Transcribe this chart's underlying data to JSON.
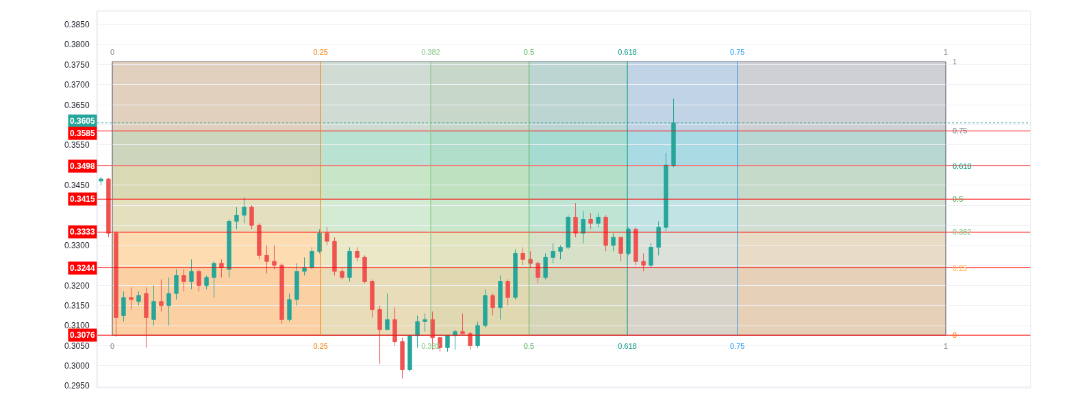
{
  "chart_data": {
    "type": "candlestick",
    "x": [
      -0.0136,
      -0.0046,
      0.0045,
      0.0135,
      0.0226,
      0.0316,
      0.0406,
      0.0497,
      0.0587,
      0.0678,
      0.0768,
      0.0858,
      0.0949,
      0.1039,
      0.113,
      0.122,
      0.131,
      0.1401,
      0.1491,
      0.1582,
      0.1672,
      0.1762,
      0.1853,
      0.1943,
      0.2034,
      0.2124,
      0.2214,
      0.2305,
      0.2395,
      0.2486,
      0.2576,
      0.2666,
      0.2757,
      0.2847,
      0.2938,
      0.3028,
      0.3118,
      0.3209,
      0.3299,
      0.339,
      0.348,
      0.357,
      0.3661,
      0.3751,
      0.3842,
      0.3932,
      0.4022,
      0.4113,
      0.4203,
      0.4294,
      0.4384,
      0.4474,
      0.4565,
      0.4655,
      0.4746,
      0.4836,
      0.4926,
      0.5017,
      0.5107,
      0.5198,
      0.5288,
      0.5378,
      0.5469,
      0.5559,
      0.565,
      0.574,
      0.583,
      0.5921,
      0.6011,
      0.6102,
      0.6192,
      0.6282,
      0.6373,
      0.6463,
      0.6554,
      0.6644,
      0.6734
    ],
    "ohlc": [
      [
        0.346,
        0.347,
        0.345,
        0.3465
      ],
      [
        0.3465,
        0.3468,
        0.332,
        0.333
      ],
      [
        0.333,
        0.3335,
        0.3072,
        0.312
      ],
      [
        0.3125,
        0.3185,
        0.311,
        0.317
      ],
      [
        0.317,
        0.3195,
        0.314,
        0.3165
      ],
      [
        0.316,
        0.3185,
        0.315,
        0.3175
      ],
      [
        0.318,
        0.3195,
        0.3045,
        0.312
      ],
      [
        0.3115,
        0.32,
        0.31,
        0.316
      ],
      [
        0.316,
        0.3215,
        0.3135,
        0.315
      ],
      [
        0.315,
        0.322,
        0.31,
        0.318
      ],
      [
        0.318,
        0.324,
        0.3165,
        0.3225
      ],
      [
        0.3225,
        0.324,
        0.3185,
        0.321
      ],
      [
        0.321,
        0.3265,
        0.319,
        0.3235
      ],
      [
        0.3235,
        0.324,
        0.3185,
        0.32
      ],
      [
        0.32,
        0.3225,
        0.319,
        0.322
      ],
      [
        0.322,
        0.326,
        0.317,
        0.3255
      ],
      [
        0.3255,
        0.3265,
        0.322,
        0.3245
      ],
      [
        0.324,
        0.3365,
        0.322,
        0.336
      ],
      [
        0.336,
        0.3395,
        0.334,
        0.3375
      ],
      [
        0.3375,
        0.342,
        0.3355,
        0.3395
      ],
      [
        0.3395,
        0.34,
        0.334,
        0.335
      ],
      [
        0.335,
        0.3355,
        0.3265,
        0.3275
      ],
      [
        0.3275,
        0.33,
        0.323,
        0.326
      ],
      [
        0.326,
        0.33,
        0.324,
        0.325
      ],
      [
        0.325,
        0.3255,
        0.3105,
        0.3115
      ],
      [
        0.3115,
        0.318,
        0.311,
        0.3165
      ],
      [
        0.3165,
        0.3255,
        0.315,
        0.3235
      ],
      [
        0.3235,
        0.327,
        0.3225,
        0.3245
      ],
      [
        0.3245,
        0.3295,
        0.324,
        0.3285
      ],
      [
        0.3285,
        0.334,
        0.328,
        0.333
      ],
      [
        0.333,
        0.3345,
        0.33,
        0.331
      ],
      [
        0.331,
        0.332,
        0.3225,
        0.3235
      ],
      [
        0.3235,
        0.3245,
        0.3215,
        0.322
      ],
      [
        0.322,
        0.3295,
        0.321,
        0.3285
      ],
      [
        0.3285,
        0.3295,
        0.326,
        0.327
      ],
      [
        0.327,
        0.3275,
        0.3205,
        0.321
      ],
      [
        0.321,
        0.3215,
        0.312,
        0.314
      ],
      [
        0.314,
        0.315,
        0.3005,
        0.309
      ],
      [
        0.309,
        0.318,
        0.309,
        0.3115
      ],
      [
        0.3115,
        0.3145,
        0.305,
        0.306
      ],
      [
        0.306,
        0.307,
        0.2968,
        0.299
      ],
      [
        0.299,
        0.3075,
        0.2985,
        0.3075
      ],
      [
        0.3075,
        0.3125,
        0.3045,
        0.311
      ],
      [
        0.311,
        0.313,
        0.3085,
        0.3115
      ],
      [
        0.3115,
        0.3135,
        0.304,
        0.307
      ],
      [
        0.307,
        0.307,
        0.3035,
        0.3045
      ],
      [
        0.3045,
        0.3075,
        0.3035,
        0.3075
      ],
      [
        0.3075,
        0.309,
        0.304,
        0.3085
      ],
      [
        0.3085,
        0.313,
        0.308,
        0.308
      ],
      [
        0.308,
        0.3085,
        0.304,
        0.305
      ],
      [
        0.305,
        0.311,
        0.3045,
        0.31
      ],
      [
        0.31,
        0.319,
        0.3095,
        0.3175
      ],
      [
        0.3175,
        0.318,
        0.3125,
        0.3145
      ],
      [
        0.3145,
        0.3225,
        0.3115,
        0.321
      ],
      [
        0.321,
        0.3215,
        0.315,
        0.317
      ],
      [
        0.317,
        0.329,
        0.3165,
        0.328
      ],
      [
        0.328,
        0.3295,
        0.325,
        0.3265
      ],
      [
        0.3265,
        0.3285,
        0.3245,
        0.3255
      ],
      [
        0.3255,
        0.326,
        0.3205,
        0.322
      ],
      [
        0.322,
        0.328,
        0.3215,
        0.327
      ],
      [
        0.327,
        0.3305,
        0.3255,
        0.3285
      ],
      [
        0.3285,
        0.33,
        0.3265,
        0.3295
      ],
      [
        0.3295,
        0.3375,
        0.329,
        0.337
      ],
      [
        0.337,
        0.3405,
        0.332,
        0.333
      ],
      [
        0.333,
        0.3385,
        0.3305,
        0.3365
      ],
      [
        0.3365,
        0.338,
        0.334,
        0.3355
      ],
      [
        0.3355,
        0.338,
        0.3345,
        0.337
      ],
      [
        0.337,
        0.3375,
        0.3285,
        0.33
      ],
      [
        0.33,
        0.333,
        0.3285,
        0.332
      ],
      [
        0.332,
        0.332,
        0.326,
        0.328
      ],
      [
        0.328,
        0.3345,
        0.3275,
        0.334
      ],
      [
        0.334,
        0.3345,
        0.325,
        0.326
      ],
      [
        0.326,
        0.328,
        0.3235,
        0.325
      ],
      [
        0.325,
        0.3305,
        0.3245,
        0.3295
      ],
      [
        0.3295,
        0.336,
        0.3275,
        0.3345
      ],
      [
        0.3345,
        0.353,
        0.3335,
        0.35
      ],
      [
        0.35,
        0.3665,
        0.3495,
        0.3605
      ]
    ],
    "colors": [
      "#26a69a",
      "#ef5350",
      "#ef5350",
      "#26a69a",
      "#ef5350",
      "#26a69a",
      "#ef5350",
      "#26a69a",
      "#ef5350",
      "#26a69a",
      "#26a69a",
      "#ef5350",
      "#26a69a",
      "#ef5350",
      "#26a69a",
      "#26a69a",
      "#ef5350",
      "#26a69a",
      "#26a69a",
      "#26a69a",
      "#ef5350",
      "#ef5350",
      "#ef5350",
      "#ef5350",
      "#ef5350",
      "#26a69a",
      "#26a69a",
      "#26a69a",
      "#26a69a",
      "#26a69a",
      "#ef5350",
      "#ef5350",
      "#ef5350",
      "#26a69a",
      "#ef5350",
      "#ef5350",
      "#ef5350",
      "#ef5350",
      "#26a69a",
      "#ef5350",
      "#ef5350",
      "#26a69a",
      "#26a69a",
      "#26a69a",
      "#ef5350",
      "#ef5350",
      "#26a69a",
      "#26a69a",
      "#ef5350",
      "#ef5350",
      "#26a69a",
      "#26a69a",
      "#ef5350",
      "#26a69a",
      "#ef5350",
      "#26a69a",
      "#ef5350",
      "#ef5350",
      "#ef5350",
      "#26a69a",
      "#26a69a",
      "#26a69a",
      "#26a69a",
      "#ef5350",
      "#26a69a",
      "#ef5350",
      "#26a69a",
      "#ef5350",
      "#26a69a",
      "#ef5350",
      "#26a69a",
      "#ef5350",
      "#ef5350",
      "#26a69a",
      "#26a69a",
      "#26a69a",
      "#26a69a"
    ],
    "xlim": [
      -0.0181,
      1.1019
    ],
    "xticks": [
      0,
      0.25,
      0.382,
      0.5,
      0.618,
      0.75,
      1
    ],
    "x2lim": [
      -0.0181,
      1.1019
    ],
    "x2ticks": [
      0,
      0.25,
      0.382,
      0.5,
      0.618,
      0.75,
      1
    ],
    "ylim": [
      0.2945,
      0.3884
    ],
    "yticks": [
      {
        "value": 0.295,
        "label": "0.2950"
      },
      {
        "value": 0.3,
        "label": "0.3000"
      },
      {
        "value": 0.305,
        "label": "0.3050"
      },
      {
        "value": 0.31,
        "label": "0.3100"
      },
      {
        "value": 0.315,
        "label": "0.3150"
      },
      {
        "value": 0.32,
        "label": "0.3200"
      },
      {
        "value": 0.325,
        "label": null
      },
      {
        "value": 0.33,
        "label": "0.3300"
      },
      {
        "value": 0.335,
        "label": null
      },
      {
        "value": 0.34,
        "label": null
      },
      {
        "value": 0.345,
        "label": "0.3450"
      },
      {
        "value": 0.35,
        "label": null
      },
      {
        "value": 0.355,
        "label": "0.3550"
      },
      {
        "value": 0.36,
        "label": null
      },
      {
        "value": 0.365,
        "label": "0.3650"
      },
      {
        "value": 0.37,
        "label": "0.3700"
      },
      {
        "value": 0.375,
        "label": "0.3750"
      },
      {
        "value": 0.38,
        "label": "0.3800"
      },
      {
        "value": 0.385,
        "label": "0.3850"
      }
    ],
    "grid": "y",
    "ref_lines": [
      {
        "axis": "y",
        "value": 0.3076,
        "label": "0.3076",
        "color": "#ff0000"
      },
      {
        "axis": "y",
        "value": 0.3244,
        "label": "0.3244",
        "color": "#ff0000"
      },
      {
        "axis": "y",
        "value": 0.3333,
        "label": "0.3333",
        "color": "#ff0000"
      },
      {
        "axis": "y",
        "value": 0.3415,
        "label": "0.3415",
        "color": "#ff0000"
      },
      {
        "axis": "y",
        "value": 0.3498,
        "label": "0.3498",
        "color": "#ff0000"
      },
      {
        "axis": "y",
        "value": 0.3585,
        "label": "0.3585",
        "color": "#ff0000"
      },
      {
        "axis": "y",
        "value": 0.3605,
        "label": "0.3605",
        "color": "#26a69a",
        "line_style": "dotted"
      },
      {
        "axis": "x",
        "value": 0,
        "color": "#787b86"
      },
      {
        "axis": "x",
        "value": 0.25,
        "color": "#f57c00"
      },
      {
        "axis": "x",
        "value": 0.382,
        "color": "#81c784"
      },
      {
        "axis": "x",
        "value": 0.5,
        "color": "#4caf50"
      },
      {
        "axis": "x",
        "value": 0.618,
        "color": "#089981"
      },
      {
        "axis": "x",
        "value": 0.75,
        "color": "#2196f3"
      },
      {
        "axis": "x",
        "value": 1,
        "color": "#787b86"
      }
    ],
    "bands": [
      {
        "axis": "x",
        "from": 0,
        "to": 0.25,
        "color": "#f57c00"
      },
      {
        "axis": "x",
        "from": 0.25,
        "to": 0.382,
        "color": "#81c784"
      },
      {
        "axis": "x",
        "from": 0.382,
        "to": 0.5,
        "color": "#4caf50"
      },
      {
        "axis": "x",
        "from": 0.5,
        "to": 0.618,
        "color": "#089981"
      },
      {
        "axis": "x",
        "from": 0.618,
        "to": 0.75,
        "color": "#2196f3"
      },
      {
        "axis": "x",
        "from": 0.75,
        "to": 1,
        "color": "#787b86"
      },
      {
        "axis": "y",
        "from": 0.3076,
        "to": 0.3244,
        "color": "#f57c00"
      },
      {
        "axis": "y",
        "from": 0.3244,
        "to": 0.3333,
        "color": "#ffb74d"
      },
      {
        "axis": "y",
        "from": 0.3333,
        "to": 0.3415,
        "color": "#81c784"
      },
      {
        "axis": "y",
        "from": 0.3415,
        "to": 0.3498,
        "color": "#4caf50"
      },
      {
        "axis": "y",
        "from": 0.3498,
        "to": 0.3585,
        "color": "#089981"
      },
      {
        "axis": "y",
        "from": 0.3585,
        "to": 0.3758,
        "color": "#787b86"
      }
    ],
    "annotations": [
      {
        "text": "0",
        "y": 0.3076
      },
      {
        "text": "0.25",
        "y": 0.3244
      },
      {
        "text": "0.382",
        "y": 0.3333
      },
      {
        "text": "0.5",
        "y": 0.3415
      },
      {
        "text": "0.618",
        "y": 0.3498
      },
      {
        "text": "0.75",
        "y": 0.3585
      },
      "1"
    ]
  }
}
